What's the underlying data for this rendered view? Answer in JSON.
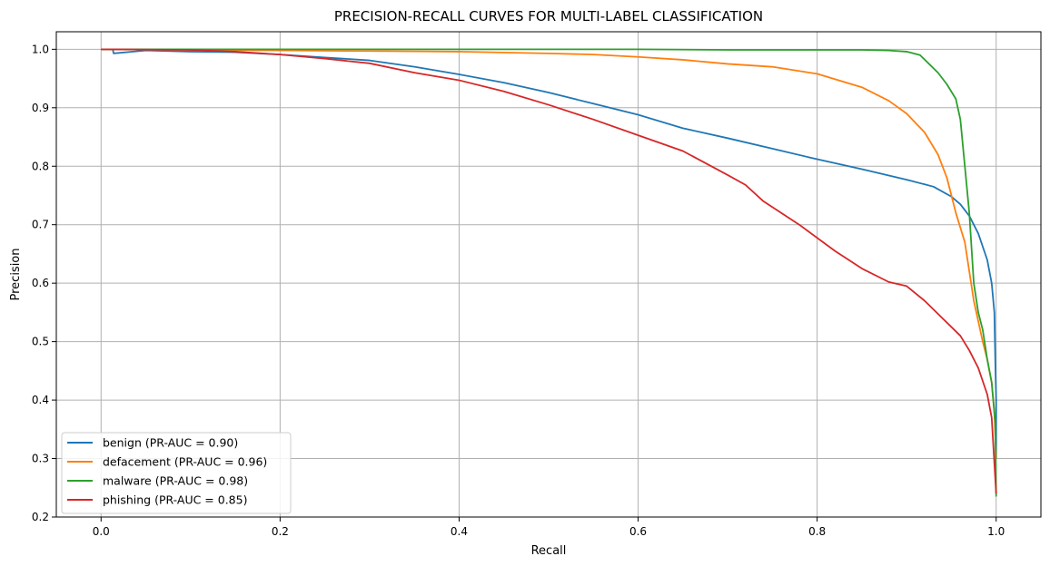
{
  "chart_data": {
    "type": "line",
    "title": "PRECISION-RECALL CURVES FOR MULTI-LABEL CLASSIFICATION",
    "xlabel": "Recall",
    "ylabel": "Precision",
    "xlim": [
      -0.05,
      1.05
    ],
    "ylim": [
      0.2,
      1.03
    ],
    "xticks": [
      0.0,
      0.2,
      0.4,
      0.6,
      0.8,
      1.0
    ],
    "xtick_labels": [
      "0.0",
      "0.2",
      "0.4",
      "0.6",
      "0.8",
      "1.0"
    ],
    "yticks": [
      0.2,
      0.3,
      0.4,
      0.5,
      0.6,
      0.7,
      0.8,
      0.9,
      1.0
    ],
    "ytick_labels": [
      "0.2",
      "0.3",
      "0.4",
      "0.5",
      "0.6",
      "0.7",
      "0.8",
      "0.9",
      "1.0"
    ],
    "grid": true,
    "legend_position": "lower-left",
    "series": [
      {
        "name": "benign (PR-AUC = 0.90)",
        "color": "#1f77b4",
        "points": [
          [
            0.0,
            1.0
          ],
          [
            0.013,
            1.0
          ],
          [
            0.014,
            0.993
          ],
          [
            0.05,
            0.998
          ],
          [
            0.1,
            0.996
          ],
          [
            0.15,
            0.995
          ],
          [
            0.2,
            0.991
          ],
          [
            0.25,
            0.986
          ],
          [
            0.3,
            0.981
          ],
          [
            0.35,
            0.97
          ],
          [
            0.4,
            0.957
          ],
          [
            0.45,
            0.943
          ],
          [
            0.5,
            0.926
          ],
          [
            0.55,
            0.907
          ],
          [
            0.6,
            0.888
          ],
          [
            0.65,
            0.865
          ],
          [
            0.7,
            0.848
          ],
          [
            0.75,
            0.83
          ],
          [
            0.8,
            0.812
          ],
          [
            0.85,
            0.795
          ],
          [
            0.9,
            0.777
          ],
          [
            0.93,
            0.765
          ],
          [
            0.95,
            0.748
          ],
          [
            0.96,
            0.735
          ],
          [
            0.97,
            0.715
          ],
          [
            0.98,
            0.685
          ],
          [
            0.99,
            0.64
          ],
          [
            0.995,
            0.6
          ],
          [
            0.998,
            0.55
          ],
          [
            0.999,
            0.47
          ],
          [
            1.0,
            0.4
          ],
          [
            1.0,
            0.3
          ]
        ]
      },
      {
        "name": "defacement (PR-AUC = 0.96)",
        "color": "#ff7f0e",
        "points": [
          [
            0.0,
            1.0
          ],
          [
            0.1,
            0.999
          ],
          [
            0.2,
            0.998
          ],
          [
            0.3,
            0.997
          ],
          [
            0.4,
            0.996
          ],
          [
            0.5,
            0.993
          ],
          [
            0.55,
            0.991
          ],
          [
            0.6,
            0.987
          ],
          [
            0.65,
            0.982
          ],
          [
            0.7,
            0.975
          ],
          [
            0.75,
            0.97
          ],
          [
            0.8,
            0.958
          ],
          [
            0.85,
            0.935
          ],
          [
            0.88,
            0.912
          ],
          [
            0.9,
            0.89
          ],
          [
            0.92,
            0.858
          ],
          [
            0.935,
            0.82
          ],
          [
            0.945,
            0.78
          ],
          [
            0.955,
            0.72
          ],
          [
            0.965,
            0.67
          ],
          [
            0.97,
            0.62
          ],
          [
            0.975,
            0.57
          ],
          [
            0.98,
            0.535
          ],
          [
            0.985,
            0.5
          ],
          [
            0.99,
            0.47
          ],
          [
            0.995,
            0.43
          ],
          [
            0.998,
            0.38
          ],
          [
            1.0,
            0.3
          ]
        ]
      },
      {
        "name": "malware (PR-AUC = 0.98)",
        "color": "#2ca02c",
        "points": [
          [
            0.0,
            1.0
          ],
          [
            0.2,
            1.0
          ],
          [
            0.4,
            1.0
          ],
          [
            0.6,
            1.0
          ],
          [
            0.7,
            0.999
          ],
          [
            0.8,
            0.999
          ],
          [
            0.85,
            0.999
          ],
          [
            0.88,
            0.998
          ],
          [
            0.9,
            0.996
          ],
          [
            0.915,
            0.99
          ],
          [
            0.925,
            0.975
          ],
          [
            0.935,
            0.96
          ],
          [
            0.945,
            0.94
          ],
          [
            0.955,
            0.915
          ],
          [
            0.96,
            0.88
          ],
          [
            0.965,
            0.8
          ],
          [
            0.97,
            0.72
          ],
          [
            0.975,
            0.6
          ],
          [
            0.98,
            0.55
          ],
          [
            0.985,
            0.52
          ],
          [
            0.99,
            0.47
          ],
          [
            0.995,
            0.43
          ],
          [
            0.999,
            0.36
          ],
          [
            1.0,
            0.235
          ]
        ]
      },
      {
        "name": "phishing (PR-AUC = 0.85)",
        "color": "#d62728",
        "points": [
          [
            0.0,
            1.0
          ],
          [
            0.1,
            0.999
          ],
          [
            0.15,
            0.996
          ],
          [
            0.2,
            0.991
          ],
          [
            0.25,
            0.984
          ],
          [
            0.3,
            0.976
          ],
          [
            0.35,
            0.96
          ],
          [
            0.4,
            0.947
          ],
          [
            0.45,
            0.928
          ],
          [
            0.5,
            0.905
          ],
          [
            0.55,
            0.88
          ],
          [
            0.6,
            0.853
          ],
          [
            0.65,
            0.826
          ],
          [
            0.7,
            0.785
          ],
          [
            0.72,
            0.768
          ],
          [
            0.74,
            0.74
          ],
          [
            0.78,
            0.7
          ],
          [
            0.82,
            0.655
          ],
          [
            0.85,
            0.625
          ],
          [
            0.88,
            0.602
          ],
          [
            0.9,
            0.595
          ],
          [
            0.92,
            0.57
          ],
          [
            0.94,
            0.54
          ],
          [
            0.96,
            0.51
          ],
          [
            0.97,
            0.485
          ],
          [
            0.98,
            0.455
          ],
          [
            0.99,
            0.41
          ],
          [
            0.995,
            0.37
          ],
          [
            1.0,
            0.24
          ]
        ]
      }
    ]
  }
}
